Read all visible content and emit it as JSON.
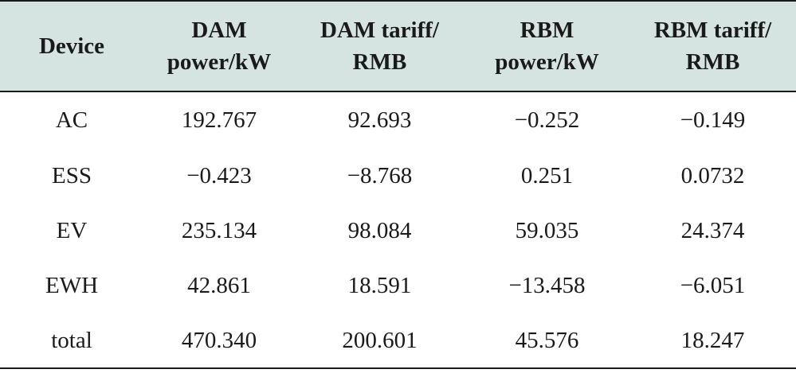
{
  "table": {
    "headers": [
      {
        "lines": [
          "Device"
        ]
      },
      {
        "lines": [
          "DAM",
          "power/kW"
        ]
      },
      {
        "lines": [
          "DAM tariff/",
          "RMB"
        ]
      },
      {
        "lines": [
          "RBM",
          "power/kW"
        ]
      },
      {
        "lines": [
          "RBM tariff/",
          "RMB"
        ]
      }
    ],
    "rows": [
      [
        "AC",
        "192.767",
        "92.693",
        "−0.252",
        "−0.149"
      ],
      [
        "ESS",
        "−0.423",
        "−8.768",
        "0.251",
        "0.0732"
      ],
      [
        "EV",
        "235.134",
        "98.084",
        "59.035",
        "24.374"
      ],
      [
        "EWH",
        "42.861",
        "18.591",
        "−13.458",
        "−6.051"
      ],
      [
        "total",
        "470.340",
        "200.601",
        "45.576",
        "18.247"
      ]
    ]
  },
  "colors": {
    "header_background": "#d5e4e1",
    "rule": "#1a1a1a",
    "text": "#1a1a1a"
  }
}
